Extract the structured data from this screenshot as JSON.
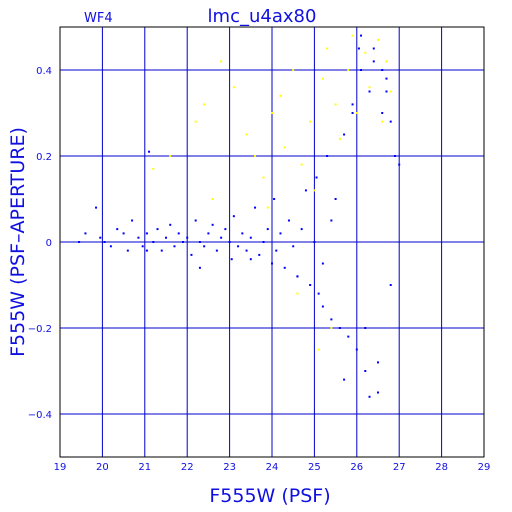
{
  "chart_data": {
    "type": "scatter",
    "title": "lmc_u4ax80",
    "chip_label": "WF4",
    "xlabel": "F555W (PSF)",
    "ylabel": "F555W (PSF–APERTURE)",
    "xlim": [
      19,
      29
    ],
    "ylim": [
      -0.5,
      0.5
    ],
    "x_ticks": [
      "19",
      "20",
      "21",
      "22",
      "23",
      "24",
      "25",
      "26",
      "27",
      "28",
      "29"
    ],
    "y_ticks": [
      "−0.4",
      "−0.2",
      "0",
      "0.2",
      "0.4"
    ],
    "grid": true,
    "colors": {
      "frame": "#000000",
      "grid": "#0000cc",
      "text": "#1010e0",
      "stars": "#0000ff",
      "rejected": "#ffff00"
    },
    "series": [
      {
        "color": "#0000ff",
        "x": [
          19.45,
          19.6,
          19.85,
          19.95,
          20.05,
          20.2,
          20.35,
          20.5,
          20.6,
          20.7,
          20.85,
          20.95,
          21.05,
          21.1,
          21.2,
          21.3,
          21.4,
          21.5,
          21.6,
          21.7,
          21.8,
          21.9,
          22.0,
          22.1,
          22.2,
          22.3,
          22.4,
          22.5,
          22.6,
          22.7,
          22.8,
          22.9,
          23.0,
          23.05,
          23.1,
          23.2,
          23.3,
          23.4,
          23.5,
          23.6,
          23.7,
          23.8,
          23.9,
          24.0,
          24.05,
          24.1,
          24.2,
          24.3,
          24.4,
          24.5,
          24.6,
          24.7,
          24.8,
          24.9,
          25.0,
          25.05,
          25.1,
          25.2,
          25.3,
          25.4,
          25.5,
          25.6,
          25.7,
          25.8,
          25.9,
          26.0,
          26.05,
          26.1,
          26.2,
          26.3,
          26.4,
          26.5,
          26.6,
          26.7,
          26.8,
          26.9,
          27.0,
          21.05,
          22.3,
          23.5,
          24.6,
          25.2,
          25.7,
          26.2,
          26.5,
          25.4,
          26.8,
          26.1,
          26.6,
          25.9,
          26.4,
          26.7,
          26.3
        ],
        "y": [
          0.0,
          0.02,
          0.08,
          0.01,
          0.0,
          -0.01,
          0.03,
          0.02,
          -0.02,
          0.05,
          0.01,
          -0.01,
          0.02,
          0.21,
          0.0,
          0.03,
          -0.02,
          0.01,
          0.04,
          -0.01,
          0.02,
          0.0,
          0.01,
          -0.03,
          0.05,
          0.0,
          -0.01,
          0.02,
          0.04,
          -0.02,
          0.01,
          0.03,
          0.0,
          -0.04,
          0.06,
          -0.01,
          0.02,
          -0.02,
          0.01,
          0.08,
          -0.03,
          0.0,
          0.03,
          -0.05,
          0.1,
          -0.02,
          0.02,
          -0.06,
          0.05,
          -0.01,
          -0.08,
          0.03,
          0.12,
          -0.1,
          0.0,
          0.15,
          -0.12,
          -0.15,
          0.2,
          -0.18,
          0.1,
          -0.2,
          0.25,
          -0.22,
          0.3,
          -0.25,
          0.45,
          0.4,
          -0.3,
          0.35,
          0.42,
          -0.35,
          0.3,
          0.38,
          0.28,
          0.2,
          0.18,
          -0.02,
          -0.06,
          -0.04,
          -0.08,
          -0.05,
          -0.32,
          -0.2,
          -0.28,
          0.05,
          -0.1,
          0.48,
          0.4,
          0.32,
          0.45,
          0.35,
          -0.36
        ]
      },
      {
        "color": "#ffff00",
        "x": [
          21.2,
          21.6,
          22.2,
          22.4,
          22.8,
          23.1,
          23.4,
          23.6,
          23.8,
          24.0,
          24.2,
          24.3,
          24.5,
          24.7,
          24.9,
          25.0,
          25.2,
          25.3,
          25.5,
          25.6,
          25.8,
          25.9,
          26.0,
          26.2,
          26.3,
          26.5,
          26.6,
          26.7,
          25.1,
          25.4,
          24.6,
          23.9,
          22.6,
          26.8
        ],
        "y": [
          0.17,
          0.2,
          0.28,
          0.32,
          0.42,
          0.36,
          0.25,
          0.2,
          0.15,
          0.3,
          0.34,
          0.22,
          0.4,
          0.18,
          0.28,
          0.12,
          0.38,
          0.45,
          0.32,
          0.24,
          0.4,
          0.48,
          0.3,
          0.44,
          0.36,
          0.47,
          0.28,
          0.42,
          -0.25,
          -0.2,
          -0.12,
          0.08,
          0.1,
          0.35
        ]
      }
    ]
  }
}
